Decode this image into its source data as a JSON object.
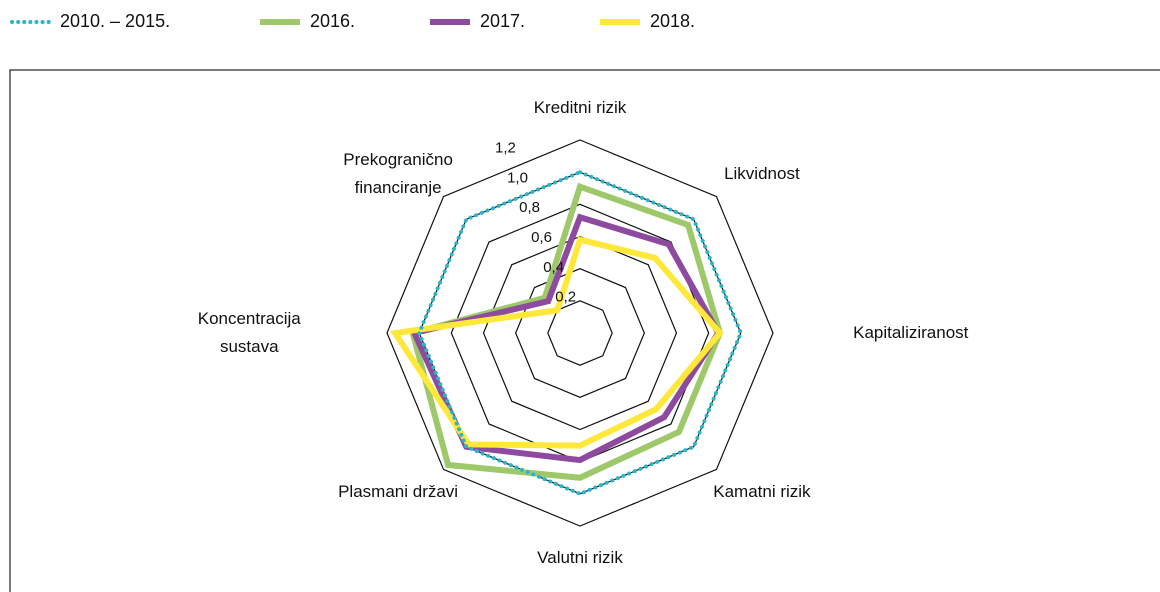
{
  "chart_data": {
    "type": "radar",
    "categories": [
      "Kreditni rizik",
      "Likvidnost",
      "Kapitaliziranost",
      "Kamatni rizik",
      "Valutni rizik",
      "Plasmani državi",
      "Koncentracija sustava",
      "Prekogranično financiranje"
    ],
    "series": [
      {
        "name": "2010. – 2015.",
        "color": "#2bb5c8",
        "line_style": "dotted",
        "values": [
          1.0,
          1.0,
          1.0,
          1.0,
          1.0,
          1.0,
          1.0,
          1.0
        ]
      },
      {
        "name": "2016.",
        "color": "#9dc96b",
        "line_style": "solid",
        "values": [
          0.91,
          0.95,
          0.87,
          0.87,
          0.9,
          1.16,
          1.04,
          0.31
        ]
      },
      {
        "name": "2017.",
        "color": "#8e4a9e",
        "line_style": "solid",
        "values": [
          0.72,
          0.78,
          0.86,
          0.74,
          0.79,
          1.0,
          1.03,
          0.28
        ]
      },
      {
        "name": "2018.",
        "color": "#ffe83a",
        "line_style": "solid",
        "values": [
          0.58,
          0.66,
          0.87,
          0.67,
          0.7,
          0.98,
          1.15,
          0.2
        ]
      }
    ],
    "ylim": [
      0,
      1.2
    ],
    "yticks": [
      {
        "value": 0.2,
        "label": "0,2"
      },
      {
        "value": 0.4,
        "label": "0,4"
      },
      {
        "value": 0.6,
        "label": "0,6"
      },
      {
        "value": 0.8,
        "label": "0,8"
      },
      {
        "value": 1.0,
        "label": "1,0"
      },
      {
        "value": 1.2,
        "label": "1,2"
      }
    ],
    "grid": true
  }
}
